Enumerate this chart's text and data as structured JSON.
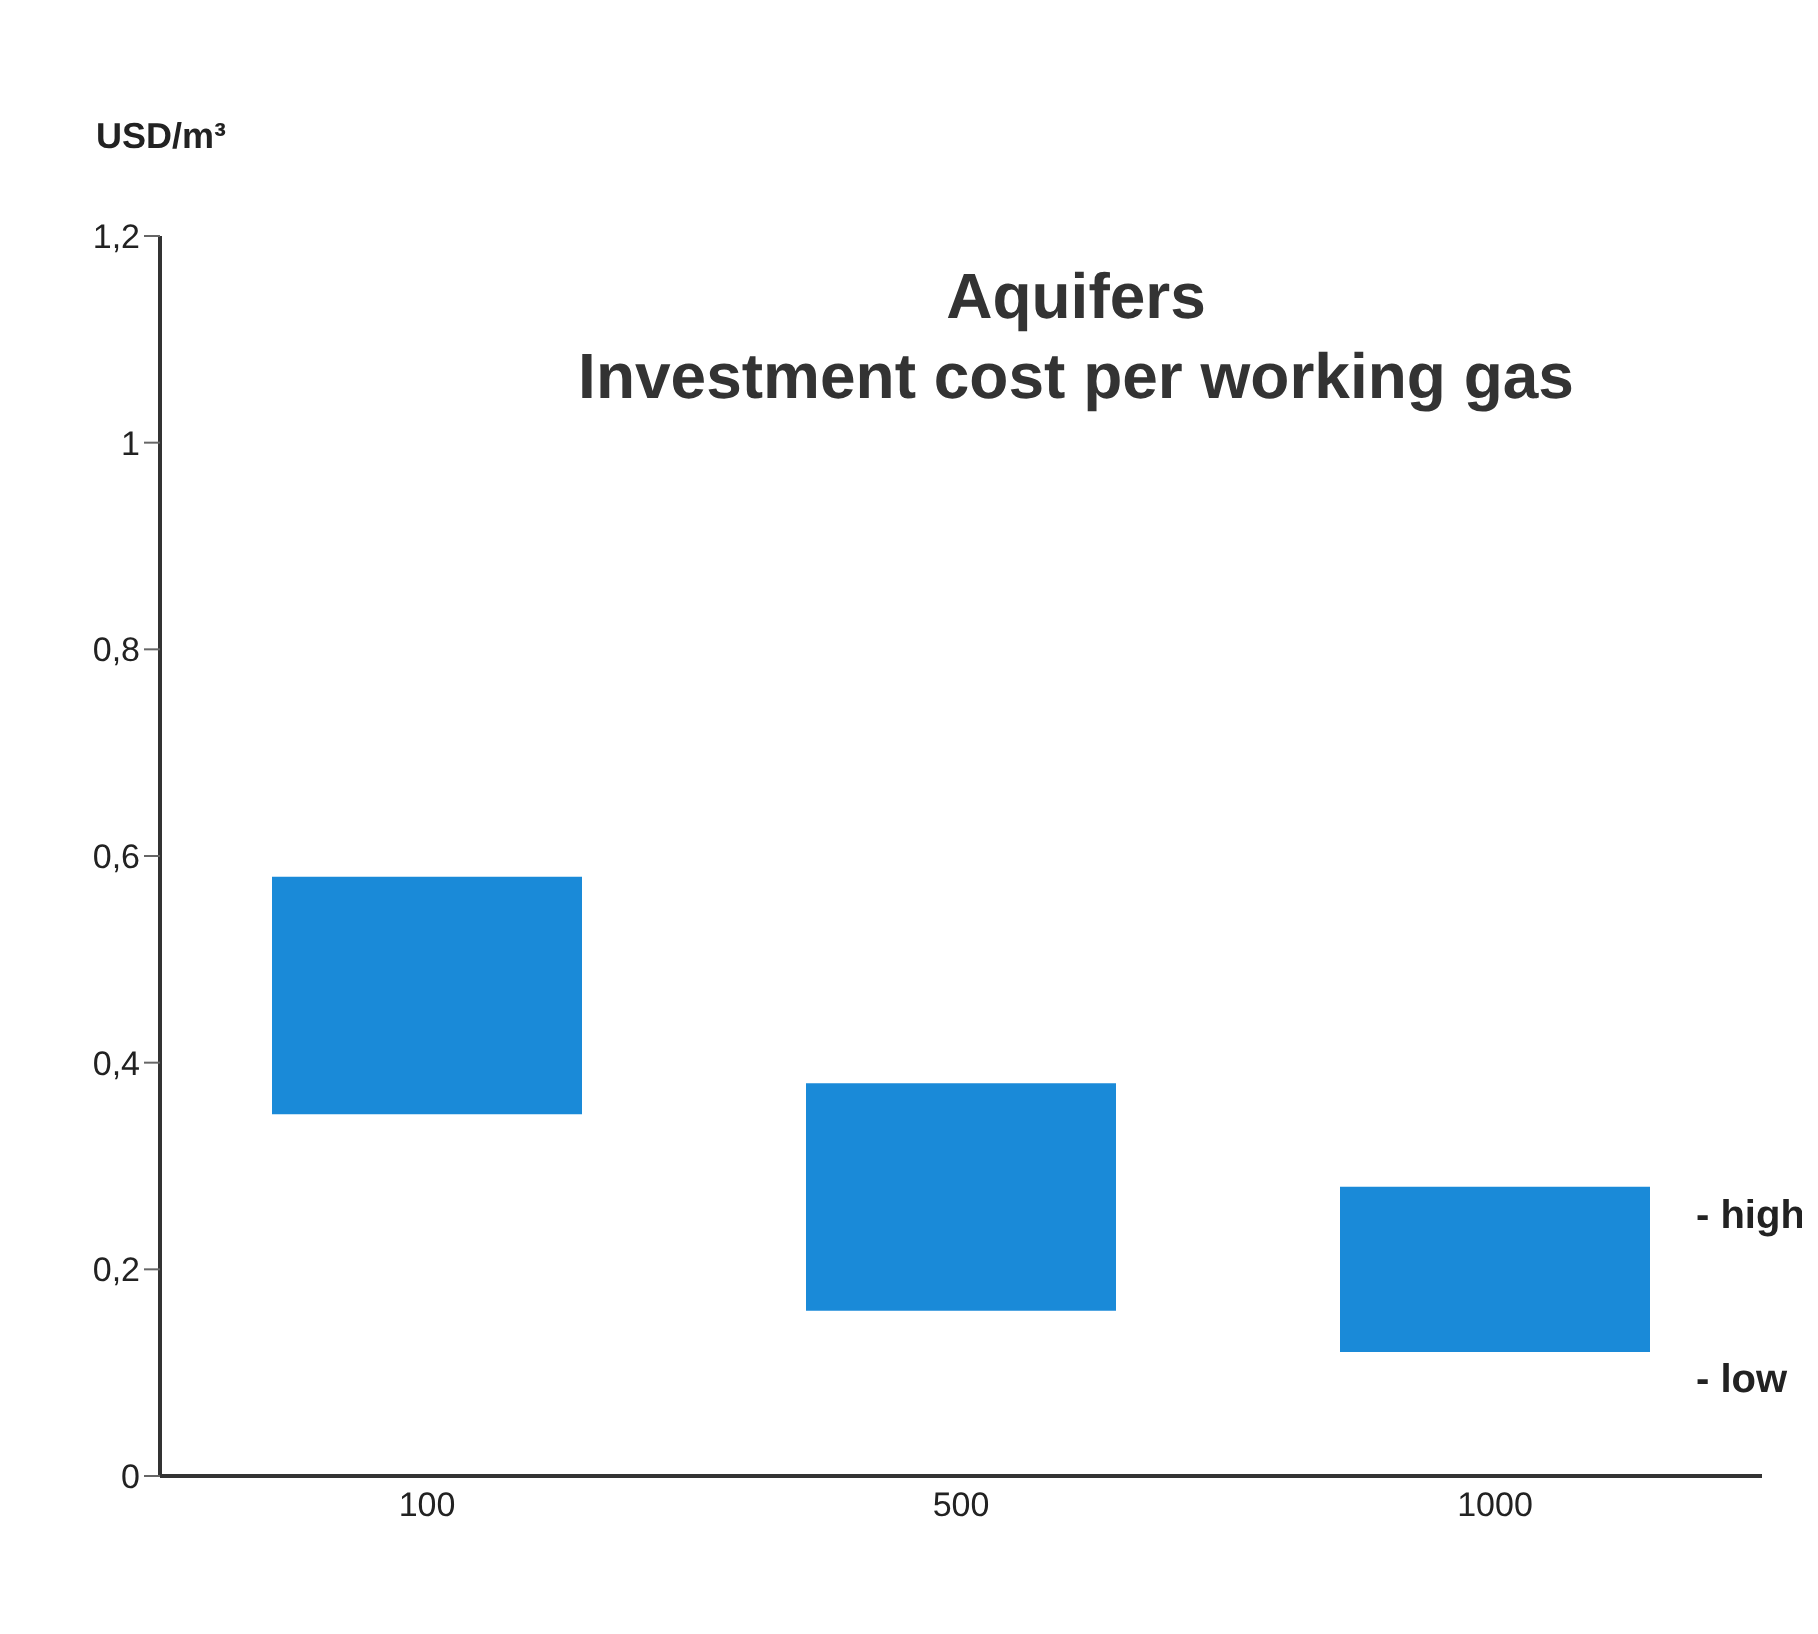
{
  "chart_data": {
    "type": "bar",
    "title": "Aquifers\nInvestment cost per working gas",
    "ylabel": "USD/m³",
    "categories": [
      "100",
      "500",
      "1000"
    ],
    "base": [
      0.35,
      0.16,
      0.12
    ],
    "values": [
      0.23,
      0.22,
      0.16
    ],
    "color": "#1a8ad8",
    "ylim": [
      0,
      1.2
    ],
    "yticks": [
      {
        "value": 0,
        "label": "0"
      },
      {
        "value": 0.2,
        "label": "0,2"
      },
      {
        "value": 0.4,
        "label": "0,4"
      },
      {
        "value": 0.6,
        "label": "0,6"
      },
      {
        "value": 0.8,
        "label": "0,8"
      },
      {
        "value": 1,
        "label": "1"
      },
      {
        "value": 1.2,
        "label": "1,2"
      }
    ],
    "annotations": [
      "- high",
      "- low"
    ],
    "grid": false,
    "legend": false
  }
}
